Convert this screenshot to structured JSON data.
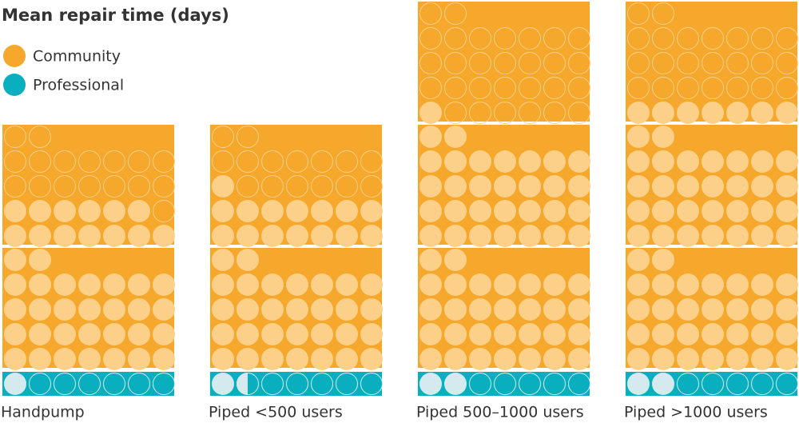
{
  "chart_data": {
    "type": "waffle",
    "title": "Mean repair time (days)",
    "categories": [
      "Handpump",
      "Piped <500 users",
      "Piped 500–1000 users",
      "Piped >1000 users"
    ],
    "series": [
      {
        "name": "Community",
        "color": "#f6a82c",
        "values": [
          43,
          45,
          61,
          67
        ]
      },
      {
        "name": "Professional",
        "color": "#0aafbf",
        "values": [
          1,
          1.5,
          2,
          2
        ]
      }
    ]
  }
}
